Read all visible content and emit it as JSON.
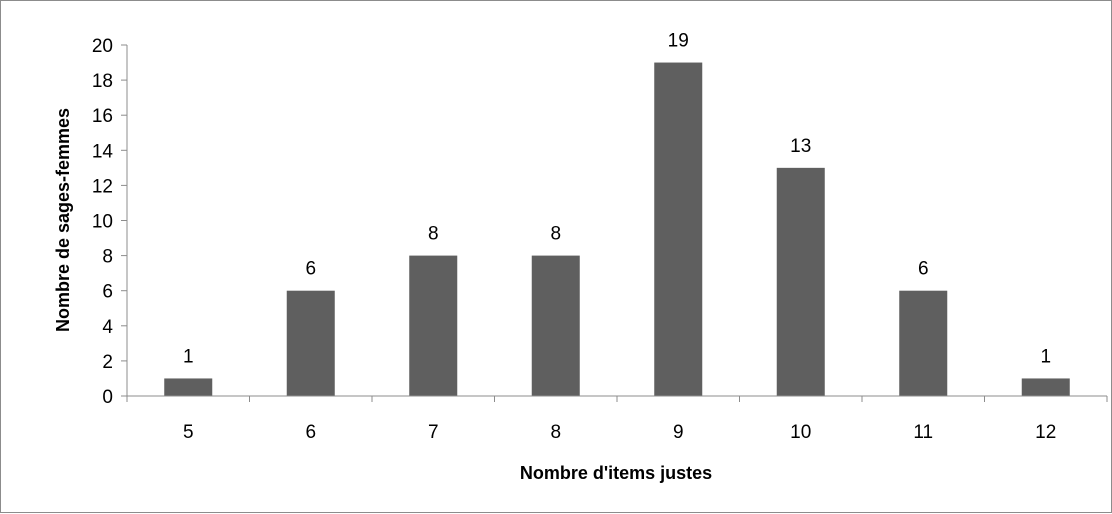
{
  "chart_data": {
    "type": "bar",
    "title": "",
    "xlabel": "Nombre d'items justes",
    "ylabel": "Nombre de sages-femmes",
    "categories": [
      "5",
      "6",
      "7",
      "8",
      "9",
      "10",
      "11",
      "12"
    ],
    "values": [
      1,
      6,
      8,
      8,
      19,
      13,
      6,
      1
    ],
    "ylim": [
      0,
      20
    ],
    "yticks": [
      0,
      2,
      4,
      6,
      8,
      10,
      12,
      14,
      16,
      18,
      20
    ],
    "grid": false,
    "legend": "none",
    "data_labels": true,
    "bar_color": "#5f5f5f"
  }
}
